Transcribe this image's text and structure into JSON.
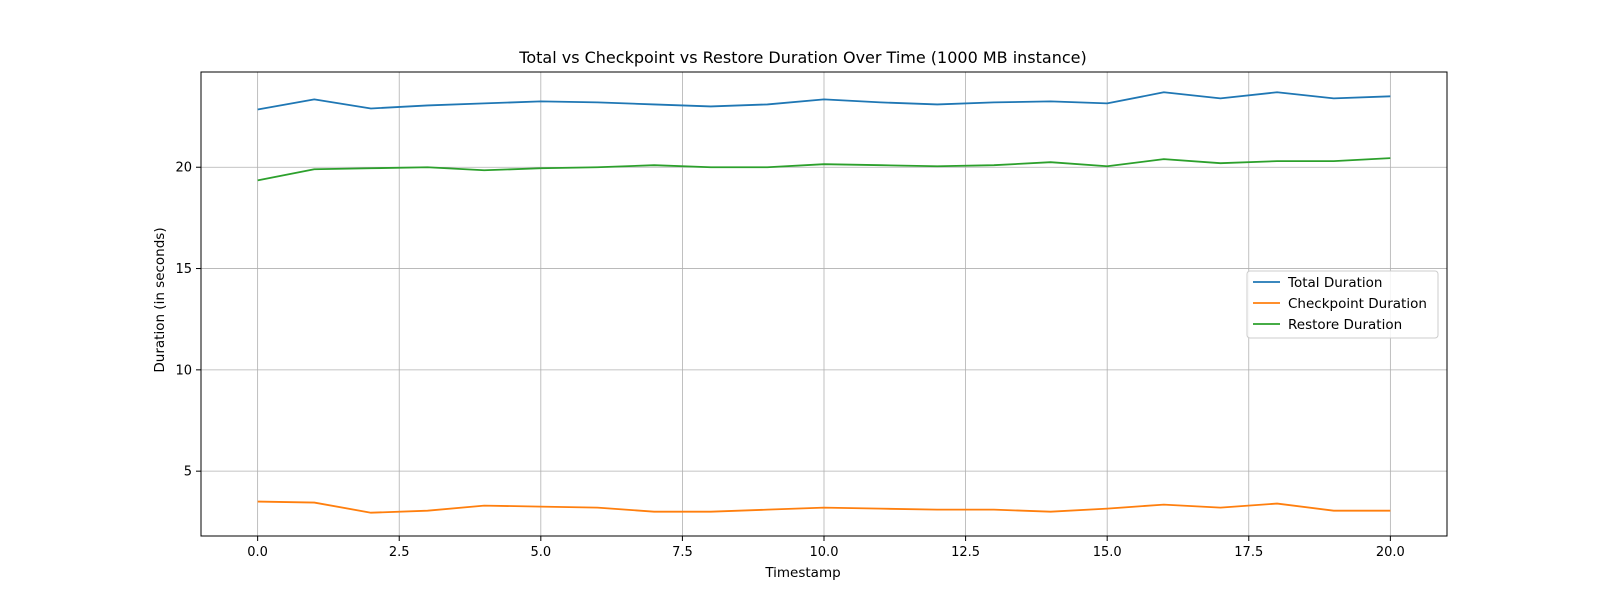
{
  "chart_data": {
    "type": "line",
    "title": "Total vs Checkpoint vs Restore Duration Over Time (1000 MB instance)",
    "xlabel": "Timestamp",
    "ylabel": "Duration (in seconds)",
    "xlim": [
      -1.0,
      21.0
    ],
    "ylim": [
      1.8,
      24.7
    ],
    "xticks": [
      0.0,
      2.5,
      5.0,
      7.5,
      10.0,
      12.5,
      15.0,
      17.5,
      20.0
    ],
    "xtick_labels": [
      "0.0",
      "2.5",
      "5.0",
      "7.5",
      "10.0",
      "12.5",
      "15.0",
      "17.5",
      "20.0"
    ],
    "yticks": [
      5,
      10,
      15,
      20
    ],
    "ytick_labels": [
      "5",
      "10",
      "15",
      "20"
    ],
    "grid": true,
    "legend_position": "center-right",
    "x": [
      0,
      1,
      2,
      3,
      4,
      5,
      6,
      7,
      8,
      9,
      10,
      11,
      12,
      13,
      14,
      15,
      16,
      17,
      18,
      19,
      20
    ],
    "series": [
      {
        "name": "Total Duration",
        "color": "#1f77b4",
        "values": [
          22.85,
          23.35,
          22.9,
          23.05,
          23.15,
          23.25,
          23.2,
          23.1,
          23.0,
          23.1,
          23.35,
          23.2,
          23.1,
          23.2,
          23.25,
          23.15,
          23.7,
          23.4,
          23.7,
          23.4,
          23.5
        ]
      },
      {
        "name": "Checkpoint Duration",
        "color": "#ff7f0e",
        "values": [
          3.5,
          3.45,
          2.95,
          3.05,
          3.3,
          3.25,
          3.2,
          3.0,
          3.0,
          3.1,
          3.2,
          3.15,
          3.1,
          3.1,
          3.0,
          3.15,
          3.35,
          3.2,
          3.4,
          3.05,
          3.05
        ]
      },
      {
        "name": "Restore Duration",
        "color": "#2ca02c",
        "values": [
          19.35,
          19.9,
          19.95,
          20.0,
          19.85,
          19.95,
          20.0,
          20.1,
          20.0,
          20.0,
          20.15,
          20.1,
          20.05,
          20.1,
          20.25,
          20.05,
          20.4,
          20.2,
          20.3,
          20.3,
          20.45
        ]
      }
    ]
  }
}
